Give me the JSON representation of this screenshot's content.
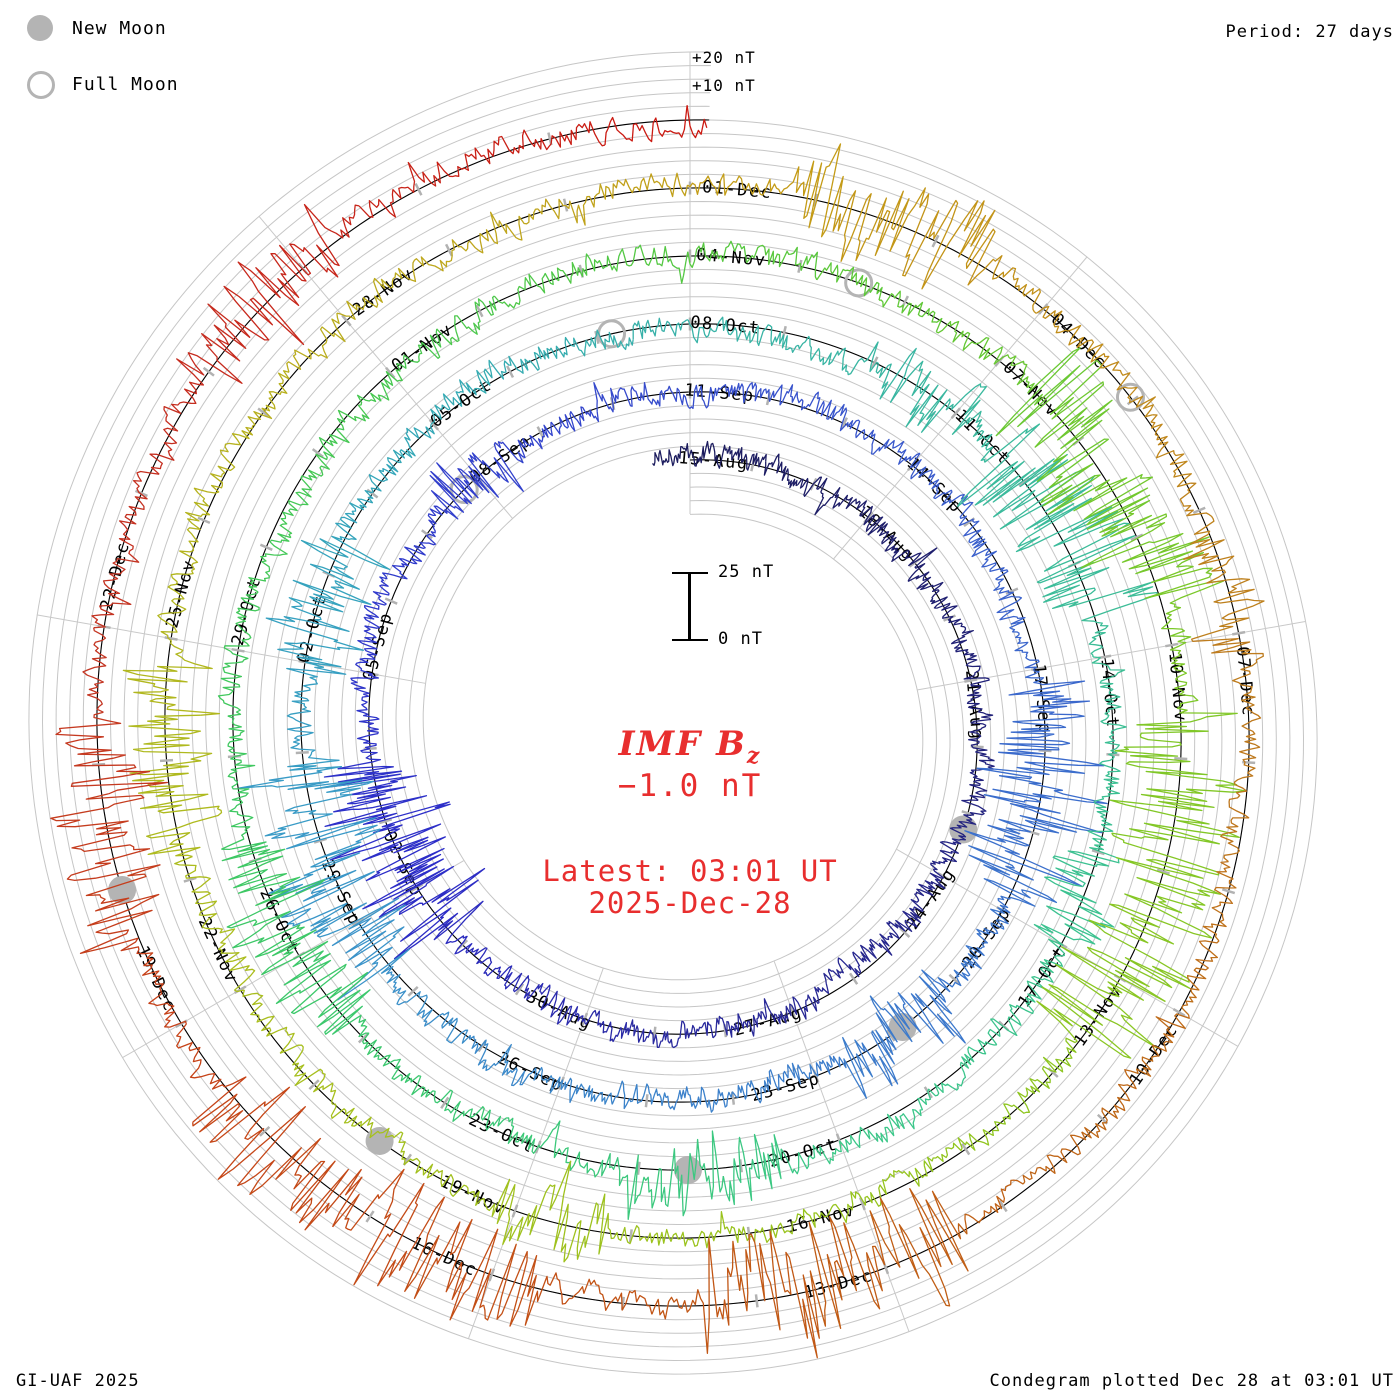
{
  "legend": {
    "new_moon_label": "New Moon",
    "full_moon_label": "Full Moon"
  },
  "header": {
    "period_label": "Period: 27 days"
  },
  "annotations": {
    "outer_plus20": "+20 nT",
    "outer_plus10": "+10 nT"
  },
  "scale_bar": {
    "top_label": "25 nT",
    "bottom_label": "0 nT"
  },
  "center_panel": {
    "title_main": "IMF B",
    "title_sub": "z",
    "current_value": "−1.0 nT",
    "latest_time": "Latest: 03:01 UT",
    "latest_date": "2025-Dec-28"
  },
  "footer": {
    "credit": "GI-UAF 2025",
    "plotted": "Condegram plotted Dec 28 at 03:01 UT"
  },
  "colors": {
    "accent_red": "#e82e2e",
    "grid": "#c6c6c6",
    "spoke": "#c9c9c9",
    "tick": "#b2b2b2",
    "moon": "#b4b4b4",
    "baseline": "#000000",
    "label": "#000000"
  },
  "chart_data": {
    "type": "condegram-polar-spiral",
    "quantity": "IMF Bz (nT)",
    "period_days": 27,
    "start_date": "2025-Aug-15",
    "latest": "2025-Dec-28 03:01 UT",
    "latest_value_nT": -1.0,
    "rotations": 5.005,
    "ring_gap_nT": 25,
    "grid_step_nT": 5,
    "grid_labels_nT": [
      "+10 nT",
      "+20 nT"
    ],
    "scale_reference_nT": 25,
    "date_labels": [
      {
        "day": 0,
        "label": "15-Aug"
      },
      {
        "day": 3,
        "label": "18-Aug"
      },
      {
        "day": 6,
        "label": "21-Aug"
      },
      {
        "day": 9,
        "label": "24-Aug"
      },
      {
        "day": 12,
        "label": "27-Aug"
      },
      {
        "day": 15,
        "label": "30-Aug"
      },
      {
        "day": 18,
        "label": "02-Sep"
      },
      {
        "day": 21,
        "label": "05-Sep"
      },
      {
        "day": 24,
        "label": "08-Sep"
      },
      {
        "day": 27,
        "label": "11-Sep"
      },
      {
        "day": 30,
        "label": "14-Sep"
      },
      {
        "day": 33,
        "label": "17-Sep"
      },
      {
        "day": 36,
        "label": "20-Sep"
      },
      {
        "day": 39,
        "label": "23-Sep"
      },
      {
        "day": 42,
        "label": "26-Sep"
      },
      {
        "day": 45,
        "label": "29-Sep"
      },
      {
        "day": 48,
        "label": "02-Oct"
      },
      {
        "day": 51,
        "label": "05-Oct"
      },
      {
        "day": 54,
        "label": "08-Oct"
      },
      {
        "day": 57,
        "label": "11-Oct"
      },
      {
        "day": 60,
        "label": "14-Oct"
      },
      {
        "day": 63,
        "label": "17-Oct"
      },
      {
        "day": 66,
        "label": "20-Oct"
      },
      {
        "day": 69,
        "label": "23-Oct"
      },
      {
        "day": 72,
        "label": "26-Oct"
      },
      {
        "day": 75,
        "label": "29-Oct"
      },
      {
        "day": 78,
        "label": "01-Nov"
      },
      {
        "day": 81,
        "label": "04-Nov"
      },
      {
        "day": 84,
        "label": "07-Nov"
      },
      {
        "day": 87,
        "label": "10-Nov"
      },
      {
        "day": 90,
        "label": "13-Nov"
      },
      {
        "day": 93,
        "label": "16-Nov"
      },
      {
        "day": 96,
        "label": "19-Nov"
      },
      {
        "day": 99,
        "label": "22-Nov"
      },
      {
        "day": 102,
        "label": "25-Nov"
      },
      {
        "day": 105,
        "label": "28-Nov"
      },
      {
        "day": 108,
        "label": "01-Dec"
      },
      {
        "day": 111,
        "label": "04-Dec"
      },
      {
        "day": 114,
        "label": "07-Dec"
      },
      {
        "day": 117,
        "label": "10-Dec"
      },
      {
        "day": 120,
        "label": "13-Dec"
      },
      {
        "day": 123,
        "label": "16-Dec"
      },
      {
        "day": 126,
        "label": "19-Dec"
      },
      {
        "day": 129,
        "label": "22-Dec"
      }
    ],
    "moons": {
      "new": [
        {
          "day": 8.25,
          "date": "Aug 23"
        },
        {
          "day": 37.83,
          "date": "Sep 21"
        },
        {
          "day": 67.52,
          "date": "Oct 21"
        },
        {
          "day": 97.28,
          "date": "Nov 20"
        },
        {
          "day": 127.07,
          "date": "Dec 20"
        }
      ],
      "full": [
        {
          "day": 23.76,
          "date": "Sep 7"
        },
        {
          "day": 53.16,
          "date": "Oct 7"
        },
        {
          "day": 82.55,
          "date": "Nov 5"
        },
        {
          "day": 111.97,
          "date": "Dec 4"
        }
      ]
    },
    "colormap_stops": [
      [
        0,
        "#1c1c5e"
      ],
      [
        8,
        "#232380"
      ],
      [
        14,
        "#2a2aa0"
      ],
      [
        18,
        "#2c2cc8"
      ],
      [
        24,
        "#3240cc"
      ],
      [
        30,
        "#3a5acc"
      ],
      [
        36,
        "#3c74cc"
      ],
      [
        42,
        "#3c86ca"
      ],
      [
        46,
        "#3a9ac8"
      ],
      [
        50,
        "#34a6ba"
      ],
      [
        54,
        "#38b2a8"
      ],
      [
        60,
        "#3cbe96"
      ],
      [
        66,
        "#3cc888"
      ],
      [
        72,
        "#3cc868"
      ],
      [
        78,
        "#48c850"
      ],
      [
        82,
        "#5ac83c"
      ],
      [
        87,
        "#7cc828"
      ],
      [
        93,
        "#96c41e"
      ],
      [
        99,
        "#aabe1e"
      ],
      [
        103,
        "#b4b41e"
      ],
      [
        106,
        "#bea81e"
      ],
      [
        109,
        "#c49a16"
      ],
      [
        114,
        "#be7e1e"
      ],
      [
        120,
        "#c05c14"
      ],
      [
        126,
        "#c64218"
      ],
      [
        129,
        "#c43524"
      ],
      [
        133,
        "#c82218"
      ],
      [
        135.2,
        "#cc1810"
      ]
    ],
    "storm_windows": [
      [
        17.2,
        19.8,
        7
      ],
      [
        23.4,
        24.4,
        4
      ],
      [
        33.2,
        35.8,
        7
      ],
      [
        37.2,
        38.6,
        4.5
      ],
      [
        44.4,
        46.9,
        8
      ],
      [
        47.9,
        49.4,
        5
      ],
      [
        56.2,
        57.2,
        4
      ],
      [
        57.6,
        59.6,
        7.5
      ],
      [
        62,
        63,
        3.5
      ],
      [
        66.6,
        68.2,
        4
      ],
      [
        71.2,
        73.2,
        5
      ],
      [
        84.4,
        86.6,
        9
      ],
      [
        87.6,
        90.6,
        8
      ],
      [
        95.2,
        96.2,
        4
      ],
      [
        100.2,
        101.8,
        5
      ],
      [
        108.9,
        110.4,
        6.5
      ],
      [
        113.2,
        114.2,
        4
      ],
      [
        119.4,
        121.4,
        8
      ],
      [
        122.6,
        125.4,
        7
      ],
      [
        126.7,
        128.3,
        6
      ],
      [
        130.9,
        132.3,
        4.5
      ]
    ]
  }
}
